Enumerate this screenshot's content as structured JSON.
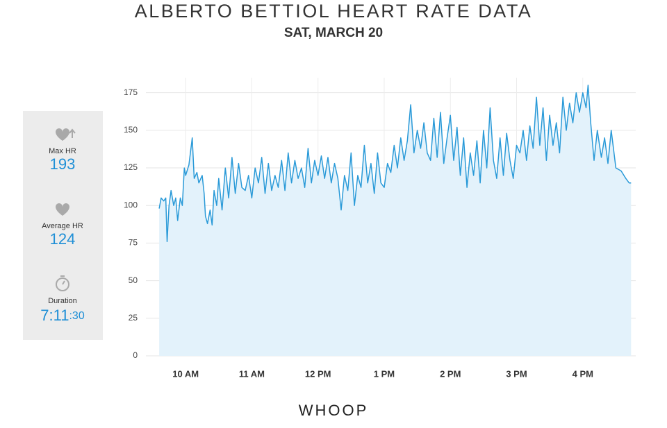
{
  "chart_data": {
    "type": "area",
    "title": "ALBERTO BETTIOL HEART RATE DATA",
    "subtitle": "SAT, MARCH 20",
    "stats": [
      {
        "label": "Max HR",
        "value": "193"
      },
      {
        "label": "Average HR",
        "value": "124"
      },
      {
        "label": "Duration",
        "value": "7:11",
        "value_small": ":30"
      }
    ],
    "brand": "WHOOP",
    "color": "#2a9ad8",
    "fill": "#e3f2fb",
    "grid": true,
    "xlim": [
      9.4,
      16.8
    ],
    "xticks": [
      {
        "value": 10,
        "label": "10 AM"
      },
      {
        "value": 11,
        "label": "11 AM"
      },
      {
        "value": 12,
        "label": "12 PM"
      },
      {
        "value": 13,
        "label": "1 PM"
      },
      {
        "value": 14,
        "label": "2 PM"
      },
      {
        "value": 15,
        "label": "3 PM"
      },
      {
        "value": 16,
        "label": "4 PM"
      }
    ],
    "ylim": [
      0,
      185
    ],
    "yticks": [
      0,
      25,
      50,
      75,
      100,
      125,
      150,
      175
    ],
    "x": [
      9.6,
      9.63,
      9.67,
      9.7,
      9.72,
      9.75,
      9.78,
      9.82,
      9.85,
      9.88,
      9.92,
      9.95,
      9.98,
      10.0,
      10.05,
      10.1,
      10.13,
      10.17,
      10.2,
      10.25,
      10.28,
      10.3,
      10.33,
      10.37,
      10.4,
      10.43,
      10.47,
      10.5,
      10.55,
      10.6,
      10.65,
      10.7,
      10.75,
      10.8,
      10.85,
      10.9,
      10.95,
      11.0,
      11.05,
      11.1,
      11.15,
      11.2,
      11.25,
      11.3,
      11.35,
      11.4,
      11.45,
      11.5,
      11.55,
      11.6,
      11.65,
      11.7,
      11.75,
      11.8,
      11.85,
      11.9,
      11.95,
      12.0,
      12.05,
      12.1,
      12.15,
      12.2,
      12.25,
      12.3,
      12.35,
      12.4,
      12.45,
      12.5,
      12.55,
      12.6,
      12.65,
      12.7,
      12.75,
      12.8,
      12.85,
      12.9,
      12.95,
      13.0,
      13.05,
      13.1,
      13.15,
      13.2,
      13.25,
      13.3,
      13.35,
      13.4,
      13.45,
      13.5,
      13.55,
      13.6,
      13.65,
      13.7,
      13.75,
      13.8,
      13.85,
      13.9,
      13.95,
      14.0,
      14.05,
      14.1,
      14.15,
      14.2,
      14.25,
      14.3,
      14.35,
      14.4,
      14.45,
      14.5,
      14.55,
      14.6,
      14.65,
      14.7,
      14.75,
      14.8,
      14.85,
      14.9,
      14.95,
      15.0,
      15.05,
      15.1,
      15.15,
      15.2,
      15.25,
      15.3,
      15.35,
      15.4,
      15.45,
      15.5,
      15.55,
      15.6,
      15.65,
      15.7,
      15.75,
      15.8,
      15.85,
      15.9,
      15.95,
      16.0,
      16.05,
      16.08,
      16.12,
      16.17,
      16.22,
      16.28,
      16.33,
      16.38,
      16.43,
      16.5,
      16.58,
      16.65,
      16.7,
      16.73
    ],
    "series": [
      {
        "name": "Heart rate",
        "values": [
          98,
          105,
          103,
          105,
          76,
          100,
          110,
          100,
          105,
          90,
          105,
          100,
          125,
          120,
          127,
          145,
          118,
          122,
          115,
          120,
          108,
          93,
          88,
          97,
          87,
          110,
          100,
          118,
          97,
          125,
          105,
          132,
          108,
          128,
          112,
          110,
          120,
          105,
          125,
          115,
          132,
          108,
          128,
          110,
          120,
          112,
          130,
          110,
          135,
          115,
          130,
          118,
          125,
          112,
          138,
          115,
          130,
          120,
          133,
          118,
          132,
          115,
          128,
          118,
          97,
          120,
          110,
          135,
          100,
          120,
          112,
          140,
          115,
          128,
          108,
          135,
          115,
          112,
          128,
          122,
          140,
          125,
          145,
          130,
          143,
          167,
          135,
          150,
          138,
          155,
          135,
          130,
          158,
          132,
          162,
          128,
          145,
          160,
          130,
          152,
          120,
          145,
          112,
          135,
          120,
          143,
          115,
          150,
          125,
          165,
          130,
          118,
          145,
          120,
          148,
          130,
          118,
          140,
          135,
          150,
          130,
          153,
          138,
          172,
          140,
          165,
          130,
          160,
          140,
          155,
          135,
          172,
          150,
          168,
          155,
          175,
          162,
          175,
          165,
          180,
          155,
          130,
          150,
          132,
          145,
          128,
          150,
          125,
          123,
          118,
          115,
          115
        ]
      }
    ]
  }
}
